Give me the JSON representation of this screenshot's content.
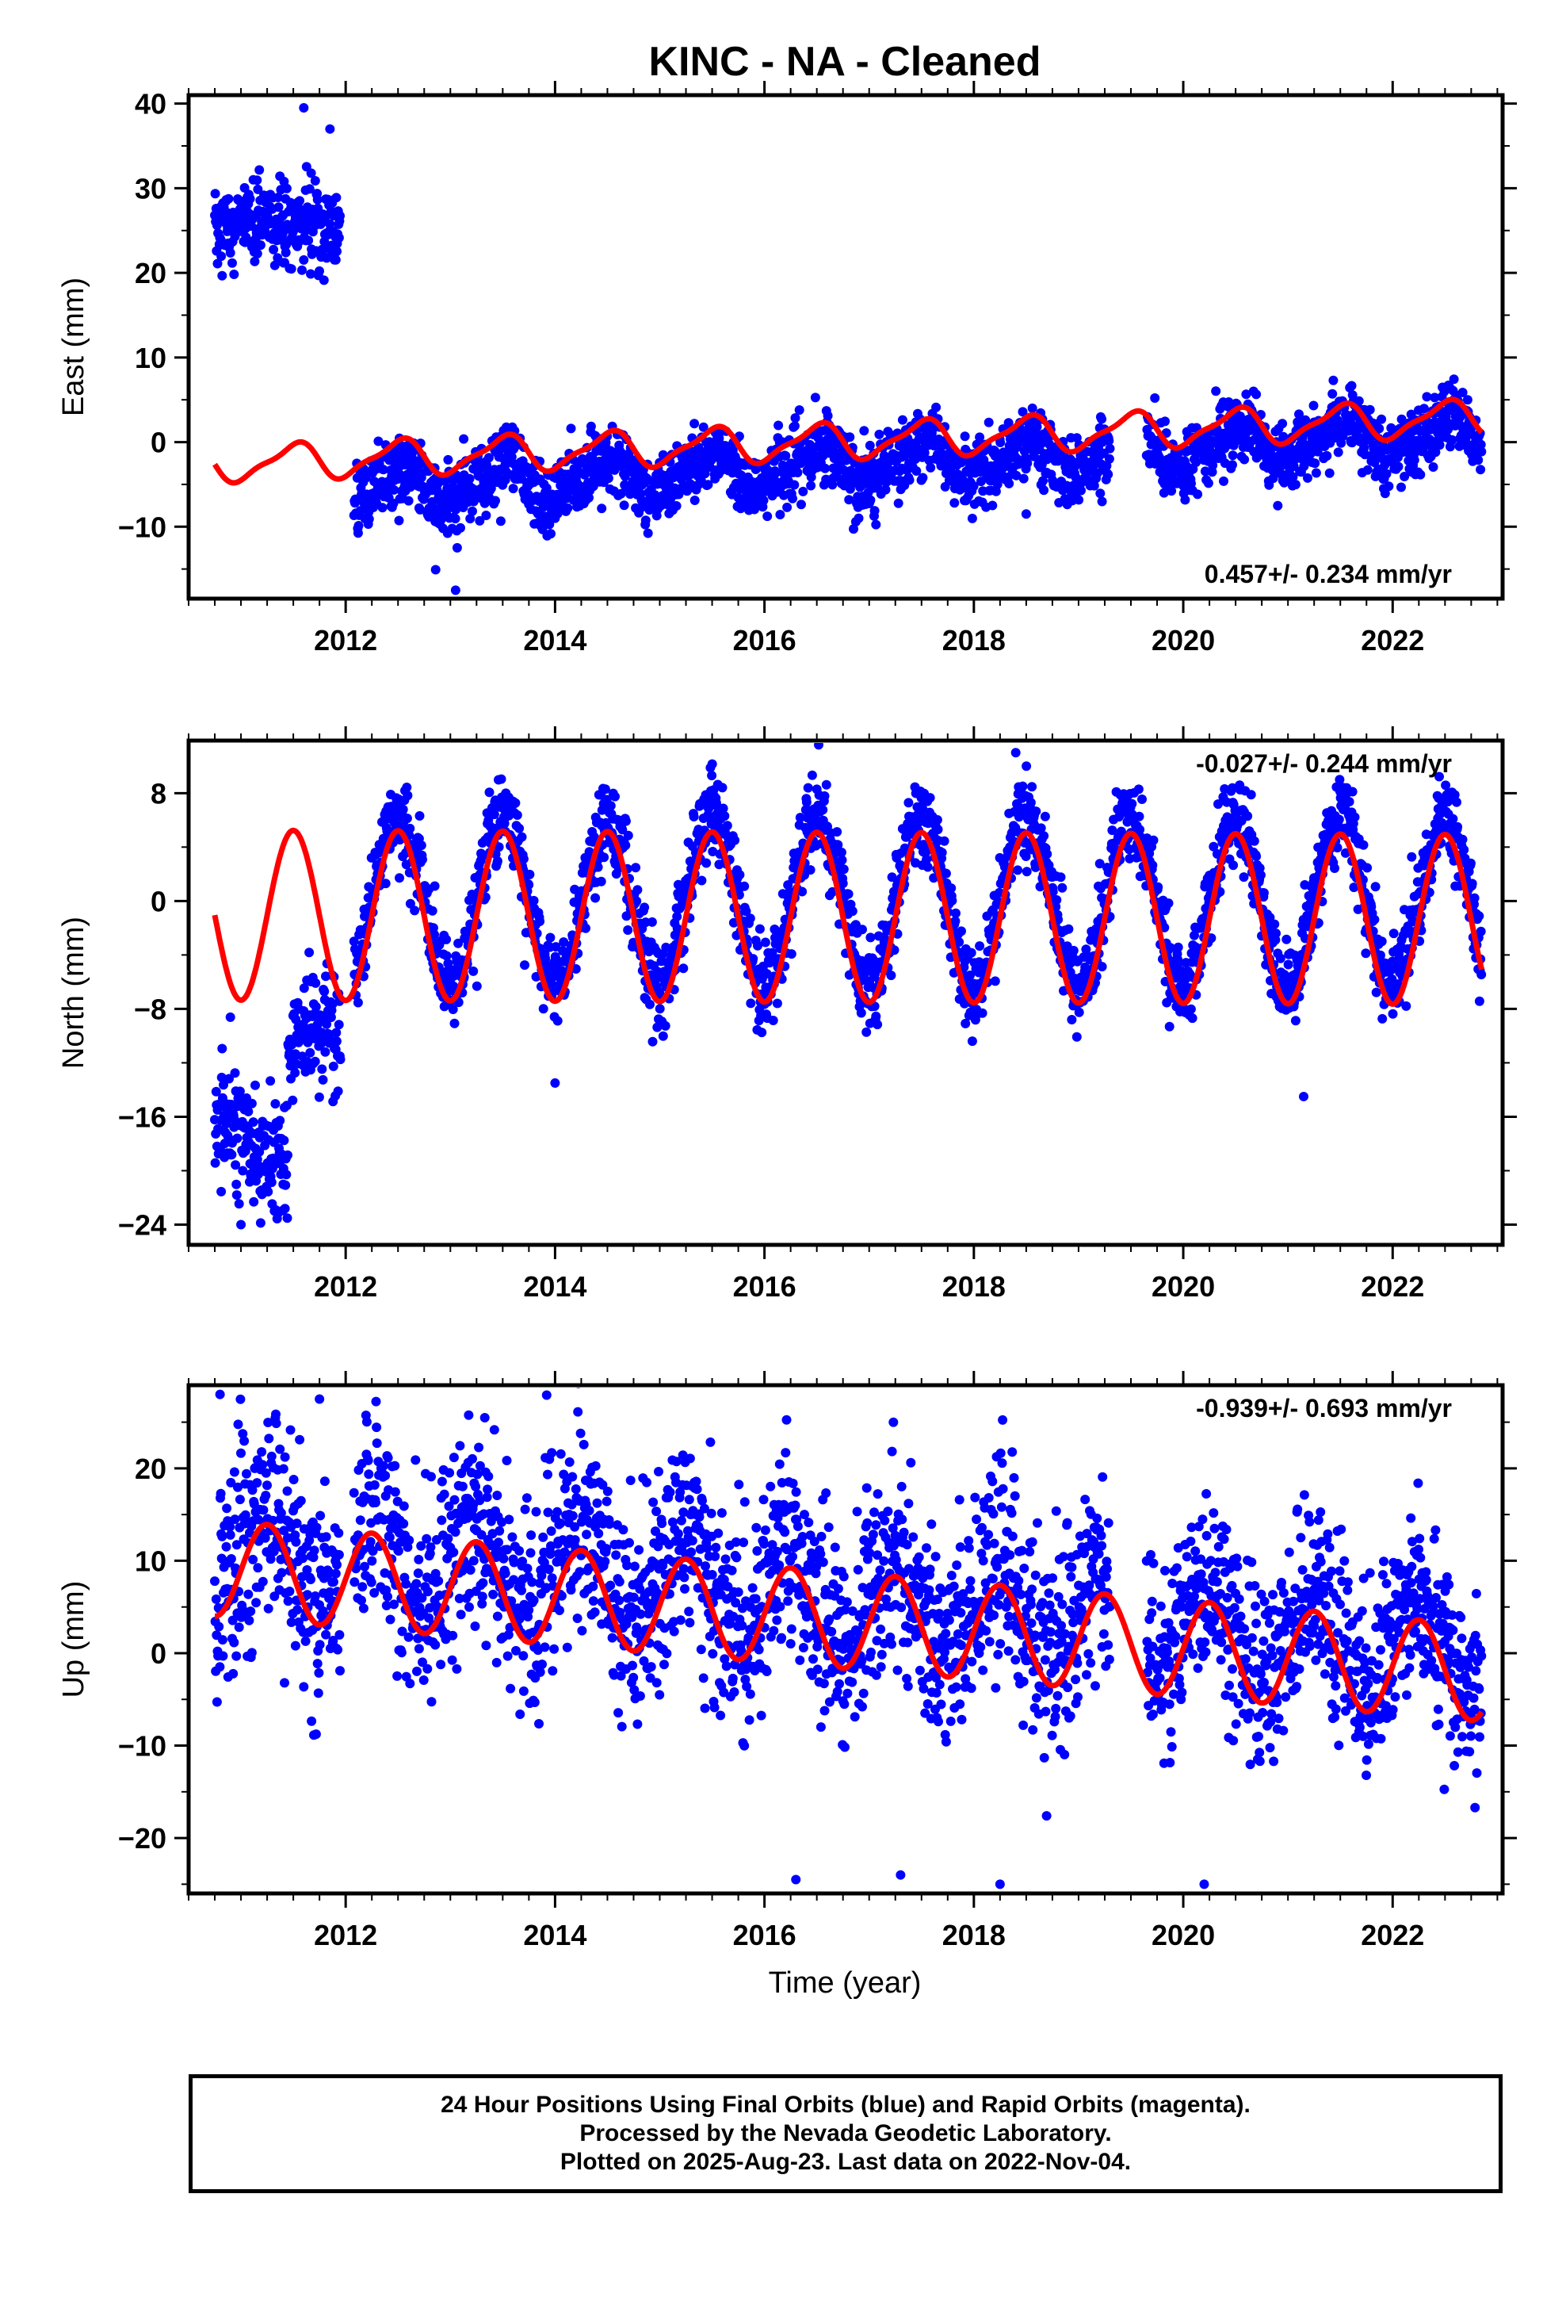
{
  "title": "KINC  - NA - Cleaned",
  "colors": {
    "points": "#0000ff",
    "model": "#ff0000",
    "axes": "#000000",
    "background": "#ffffff"
  },
  "xaxis": {
    "label": "Time (year)",
    "ticks": [
      "2012",
      "2014",
      "2016",
      "2018",
      "2020",
      "2022"
    ],
    "tick_values": [
      2012,
      2014,
      2016,
      2018,
      2020,
      2022
    ],
    "range": [
      2010.5,
      2023.05
    ]
  },
  "footer": {
    "line1": "24 Hour Positions Using Final Orbits (blue) and Rapid Orbits (magenta).",
    "line2": "Processed by the Nevada Geodetic Laboratory.",
    "line3": "Plotted on 2025-Aug-23. Last data on 2022-Nov-04."
  },
  "chart_data": [
    {
      "type": "scatter",
      "component": "east",
      "ylabel": "East (mm)",
      "rate_label": "0.457+/- 0.234 mm/yr",
      "rate_position": "bottom-right",
      "ylim": [
        -18.5,
        41
      ],
      "yticks": [
        -10,
        0,
        10,
        20,
        30,
        40
      ],
      "ytick_labels": [
        "−10",
        "0",
        "10",
        "20",
        "30",
        "40"
      ],
      "data_range": [
        2010.75,
        2022.85
      ],
      "segments": [
        {
          "x0": 2010.75,
          "x1": 2011.95,
          "base": 25.5,
          "scatter": 3.0
        },
        {
          "x0": 2012.08,
          "x1": 2019.3,
          "base": -1.0,
          "scatter": 2.0
        },
        {
          "x0": 2019.65,
          "x1": 2022.85,
          "base": 0.5,
          "scatter": 2.0
        }
      ],
      "model": {
        "offset": 0.0,
        "rate": 0.457,
        "annual_amp": 2.0,
        "annual_phase": 0.25,
        "semi_amp": 0.6
      },
      "outliers": [
        [
          2011.6,
          39.5
        ],
        [
          2011.85,
          37.0
        ],
        [
          2013.05,
          -17.5
        ],
        [
          2014.0,
          -9.0
        ],
        [
          2016.9,
          -9.0
        ],
        [
          2018.5,
          -8.5
        ]
      ]
    },
    {
      "type": "scatter",
      "component": "north",
      "ylabel": "North (mm)",
      "rate_label": "-0.027+/- 0.244 mm/yr",
      "rate_position": "top-right",
      "ylim": [
        -25.5,
        11.9
      ],
      "yticks": [
        -24,
        -16,
        -8,
        0,
        8
      ],
      "ytick_labels": [
        "−24",
        "−16",
        "−8",
        "0",
        "8"
      ],
      "data_range": [
        2010.75,
        2022.85
      ],
      "segments": [
        {
          "x0": 2010.75,
          "x1": 2011.45,
          "base": -17.5,
          "scatter": 3.0
        },
        {
          "x0": 2011.45,
          "x1": 2011.95,
          "base": -11.0,
          "scatter": 3.0
        },
        {
          "x0": 2012.08,
          "x1": 2022.85,
          "base": 0.0,
          "scatter": 1.6
        }
      ],
      "model": {
        "offset": -1.2,
        "rate": -0.027,
        "annual_amp": 6.3,
        "annual_phase": 0.25,
        "semi_amp": 0.0
      },
      "outliers": [
        [
          2011.0,
          -24.0
        ],
        [
          2014.0,
          -13.5
        ],
        [
          2021.15,
          -14.5
        ],
        [
          2018.4,
          11.0
        ]
      ]
    },
    {
      "type": "scatter",
      "component": "up",
      "ylabel": "Up (mm)",
      "rate_label": "-0.939+/- 0.693 mm/yr",
      "rate_position": "top-right",
      "ylim": [
        -26,
        29
      ],
      "yticks": [
        -20,
        -10,
        0,
        10,
        20
      ],
      "ytick_labels": [
        "−20",
        "−10",
        "0",
        "10",
        "20"
      ],
      "data_range": [
        2010.75,
        2022.85
      ],
      "segments": [
        {
          "x0": 2010.75,
          "x1": 2011.95,
          "base": 10.0,
          "scatter": 5.5
        },
        {
          "x0": 2012.08,
          "x1": 2019.3,
          "base": 3.0,
          "scatter": 5.5
        },
        {
          "x0": 2019.65,
          "x1": 2022.85,
          "base": -3.0,
          "scatter": 5.0
        }
      ],
      "model": {
        "offset": 3.8,
        "rate": -0.939,
        "annual_amp": 5.2,
        "annual_phase": 0.0,
        "semi_amp": 0.0
      },
      "outliers": [
        [
          2010.8,
          28.0
        ],
        [
          2011.75,
          27.5
        ],
        [
          2016.3,
          -24.5
        ],
        [
          2018.25,
          -25.0
        ],
        [
          2020.2,
          -25.0
        ],
        [
          2017.3,
          -24.0
        ]
      ]
    }
  ]
}
